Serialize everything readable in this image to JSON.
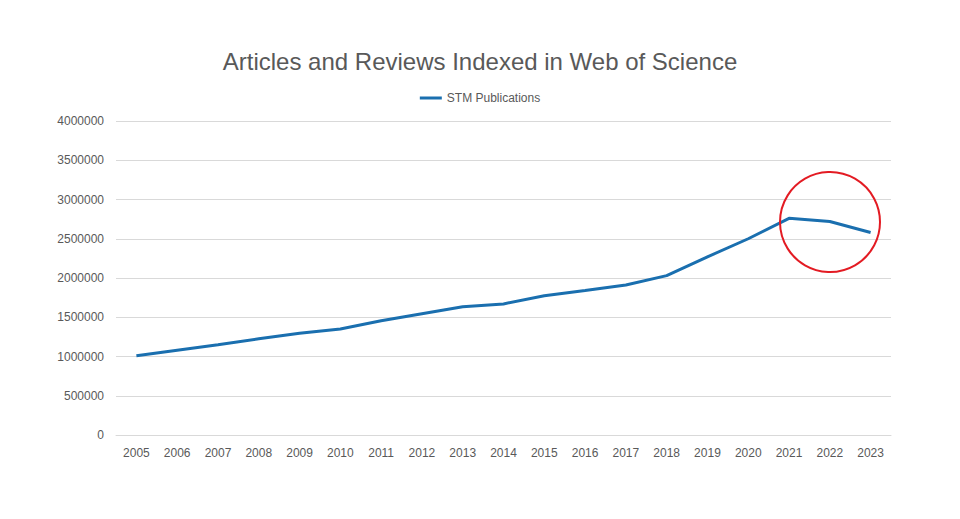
{
  "chart_data": {
    "type": "line",
    "title": "Articles and Reviews Indexed in Web of Science",
    "categories": [
      "2005",
      "2006",
      "2007",
      "2008",
      "2009",
      "2010",
      "2011",
      "2012",
      "2013",
      "2014",
      "2015",
      "2016",
      "2017",
      "2018",
      "2019",
      "2020",
      "2021",
      "2022",
      "2023"
    ],
    "series": [
      {
        "name": "STM Publications",
        "color": "#1a6faf",
        "values": [
          1010000,
          1080000,
          1150000,
          1225000,
          1295000,
          1350000,
          1455000,
          1545000,
          1635000,
          1670000,
          1775000,
          1840000,
          1910000,
          2030000,
          2270000,
          2500000,
          2760000,
          2720000,
          2580000
        ]
      }
    ],
    "ylim": [
      0,
      4000000
    ],
    "yticks": [
      0,
      500000,
      1000000,
      1500000,
      2000000,
      2500000,
      3000000,
      3500000,
      4000000
    ],
    "grid": true,
    "legend": "top"
  }
}
